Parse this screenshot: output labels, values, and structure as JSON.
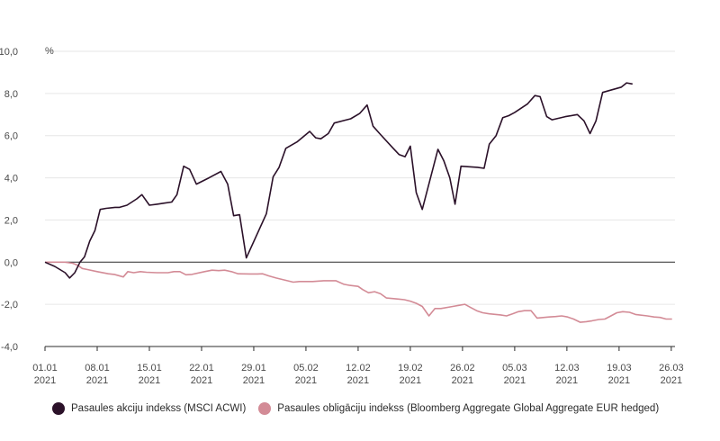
{
  "chart_data": {
    "type": "line",
    "unit": "%",
    "ylim": [
      -4,
      10
    ],
    "yticks": [
      "10,0",
      "8,0",
      "6,0",
      "4,0",
      "2,0",
      "0,0",
      "-2,0",
      "-4,0"
    ],
    "ytick_values": [
      10,
      8,
      6,
      4,
      2,
      0,
      -2,
      -4
    ],
    "xlim": [
      0,
      88
    ],
    "xticks": [
      {
        "x": 0,
        "line1": "01.01",
        "line2": "2021"
      },
      {
        "x": 7,
        "line1": "08.01",
        "line2": "2021"
      },
      {
        "x": 14,
        "line1": "15.01",
        "line2": "2021"
      },
      {
        "x": 21,
        "line1": "22.01",
        "line2": "2021"
      },
      {
        "x": 28,
        "line1": "29.01",
        "line2": "2021"
      },
      {
        "x": 35,
        "line1": "05.02",
        "line2": "2021"
      },
      {
        "x": 42,
        "line1": "12.02",
        "line2": "2021"
      },
      {
        "x": 49,
        "line1": "19.02",
        "line2": "2021"
      },
      {
        "x": 56,
        "line1": "26.02",
        "line2": "2021"
      },
      {
        "x": 63,
        "line1": "05.03",
        "line2": "2021"
      },
      {
        "x": 70,
        "line1": "12.03",
        "line2": "2021"
      },
      {
        "x": 77,
        "line1": "19.03",
        "line2": "2021"
      },
      {
        "x": 84,
        "line1": "26.03",
        "line2": "2021"
      }
    ],
    "grid": true,
    "legend_position": "bottom",
    "series": [
      {
        "name": "Pasaules akciju indekss (MSCI ACWI)",
        "color": "#2b1129",
        "points": [
          [
            0,
            0
          ],
          [
            1.3,
            -0.2
          ],
          [
            2.7,
            -0.5
          ],
          [
            3.3,
            -0.75
          ],
          [
            4,
            -0.5
          ],
          [
            4.7,
            0
          ],
          [
            5.3,
            0.25
          ],
          [
            6,
            1.0
          ],
          [
            6.7,
            1.5
          ],
          [
            7.4,
            2.5
          ],
          [
            8.2,
            2.55
          ],
          [
            9.4,
            2.6
          ],
          [
            10,
            2.6
          ],
          [
            11,
            2.7
          ],
          [
            12.3,
            3.0
          ],
          [
            13,
            3.2
          ],
          [
            14,
            2.7
          ],
          [
            15,
            2.75
          ],
          [
            16,
            2.8
          ],
          [
            17,
            2.85
          ],
          [
            17.7,
            3.2
          ],
          [
            18.6,
            4.55
          ],
          [
            19.4,
            4.4
          ],
          [
            20.3,
            3.7
          ],
          [
            22,
            4.0
          ],
          [
            23.6,
            4.3
          ],
          [
            24.5,
            3.7
          ],
          [
            25.3,
            2.2
          ],
          [
            26.1,
            2.25
          ],
          [
            27,
            0.2
          ],
          [
            29.7,
            2.3
          ],
          [
            30.6,
            4.05
          ],
          [
            31.4,
            4.5
          ],
          [
            32.3,
            5.4
          ],
          [
            33.8,
            5.7
          ],
          [
            35.5,
            6.2
          ],
          [
            36.3,
            5.9
          ],
          [
            37,
            5.85
          ],
          [
            38,
            6.1
          ],
          [
            38.8,
            6.6
          ],
          [
            41,
            6.8
          ],
          [
            42.2,
            7.05
          ],
          [
            43.2,
            7.45
          ],
          [
            44,
            6.45
          ],
          [
            45,
            6.05
          ],
          [
            46.7,
            5.4
          ],
          [
            47.5,
            5.1
          ],
          [
            48.3,
            5.0
          ],
          [
            49,
            5.5
          ],
          [
            49.8,
            3.3
          ],
          [
            50.6,
            2.5
          ],
          [
            52.7,
            5.35
          ],
          [
            53.5,
            4.8
          ],
          [
            54.3,
            4.0
          ],
          [
            55,
            2.75
          ],
          [
            55.8,
            4.55
          ],
          [
            58,
            4.5
          ],
          [
            58.9,
            4.45
          ],
          [
            59.6,
            5.6
          ],
          [
            60.5,
            6.0
          ],
          [
            61.4,
            6.85
          ],
          [
            62.2,
            6.95
          ],
          [
            63,
            7.1
          ],
          [
            64.7,
            7.5
          ],
          [
            65.7,
            7.9
          ],
          [
            66.4,
            7.85
          ],
          [
            67.3,
            6.9
          ],
          [
            68,
            6.75
          ],
          [
            69.8,
            6.9
          ],
          [
            71.4,
            7.0
          ],
          [
            72.3,
            6.7
          ],
          [
            73.1,
            6.1
          ],
          [
            73.9,
            6.7
          ],
          [
            74.8,
            8.05
          ],
          [
            77.3,
            8.3
          ],
          [
            78,
            8.5
          ],
          [
            78.8,
            8.45
          ]
        ]
      },
      {
        "name": "Pasaules obligāciju indekss (Bloomberg Aggregate Global Aggregate EUR hedged)",
        "color": "#d38b96",
        "points": [
          [
            0,
            0
          ],
          [
            2.7,
            0
          ],
          [
            3.7,
            -0.05
          ],
          [
            4.4,
            -0.15
          ],
          [
            5,
            -0.3
          ],
          [
            5.7,
            -0.35
          ],
          [
            7,
            -0.45
          ],
          [
            8.5,
            -0.55
          ],
          [
            9.3,
            -0.58
          ],
          [
            10.5,
            -0.7
          ],
          [
            11.1,
            -0.45
          ],
          [
            11.9,
            -0.5
          ],
          [
            12.8,
            -0.45
          ],
          [
            13.6,
            -0.48
          ],
          [
            15,
            -0.5
          ],
          [
            16.5,
            -0.5
          ],
          [
            17.3,
            -0.45
          ],
          [
            18.1,
            -0.45
          ],
          [
            18.9,
            -0.6
          ],
          [
            19.7,
            -0.58
          ],
          [
            21.4,
            -0.45
          ],
          [
            22.4,
            -0.38
          ],
          [
            23.3,
            -0.4
          ],
          [
            24.1,
            -0.38
          ],
          [
            25,
            -0.45
          ],
          [
            25.9,
            -0.55
          ],
          [
            27.5,
            -0.56
          ],
          [
            28.5,
            -0.56
          ],
          [
            29.2,
            -0.55
          ],
          [
            30,
            -0.65
          ],
          [
            31,
            -0.75
          ],
          [
            32.5,
            -0.88
          ],
          [
            33.3,
            -0.95
          ],
          [
            34.1,
            -0.92
          ],
          [
            35,
            -0.92
          ],
          [
            35.9,
            -0.92
          ],
          [
            37.4,
            -0.88
          ],
          [
            38.2,
            -0.88
          ],
          [
            39,
            -0.88
          ],
          [
            40.1,
            -1.05
          ],
          [
            40.9,
            -1.1
          ],
          [
            42,
            -1.15
          ],
          [
            42.6,
            -1.3
          ],
          [
            43.4,
            -1.45
          ],
          [
            44.2,
            -1.4
          ],
          [
            45,
            -1.5
          ],
          [
            45.8,
            -1.7
          ],
          [
            47.4,
            -1.75
          ],
          [
            48.2,
            -1.78
          ],
          [
            49,
            -1.85
          ],
          [
            49.8,
            -1.95
          ],
          [
            50.6,
            -2.1
          ],
          [
            51.5,
            -2.55
          ],
          [
            52.3,
            -2.2
          ],
          [
            53.1,
            -2.2
          ],
          [
            54.7,
            -2.1
          ],
          [
            55.5,
            -2.05
          ],
          [
            56.3,
            -2.0
          ],
          [
            57.1,
            -2.15
          ],
          [
            57.9,
            -2.3
          ],
          [
            58.7,
            -2.4
          ],
          [
            59.6,
            -2.45
          ],
          [
            61.1,
            -2.5
          ],
          [
            61.9,
            -2.55
          ],
          [
            62.7,
            -2.45
          ],
          [
            63.5,
            -2.35
          ],
          [
            64.3,
            -2.3
          ],
          [
            65.2,
            -2.3
          ],
          [
            66,
            -2.65
          ],
          [
            67.6,
            -2.6
          ],
          [
            68.5,
            -2.58
          ],
          [
            69.3,
            -2.55
          ],
          [
            70.1,
            -2.6
          ],
          [
            70.9,
            -2.7
          ],
          [
            71.8,
            -2.85
          ],
          [
            72.6,
            -2.82
          ],
          [
            73.4,
            -2.78
          ],
          [
            74.3,
            -2.72
          ],
          [
            75.1,
            -2.7
          ],
          [
            75.9,
            -2.55
          ],
          [
            76.7,
            -2.4
          ],
          [
            77.5,
            -2.35
          ],
          [
            78.4,
            -2.38
          ],
          [
            79.2,
            -2.48
          ],
          [
            80.8,
            -2.55
          ],
          [
            81.7,
            -2.6
          ],
          [
            82.5,
            -2.62
          ],
          [
            83.3,
            -2.7
          ],
          [
            84.1,
            -2.7
          ]
        ]
      }
    ]
  }
}
